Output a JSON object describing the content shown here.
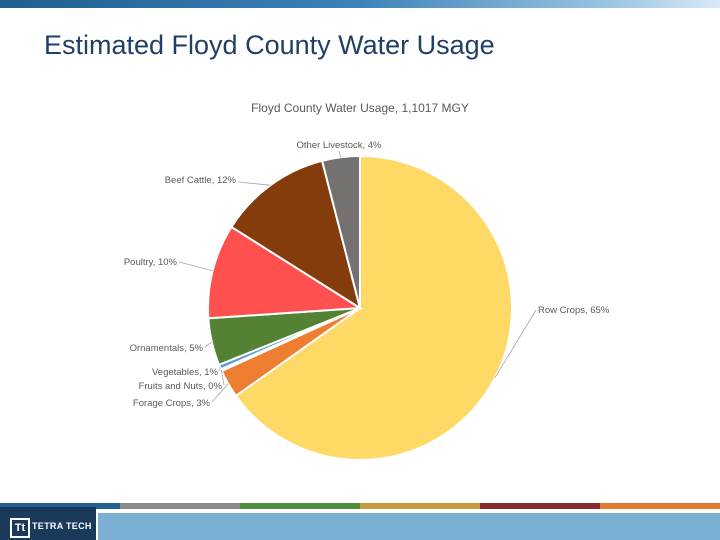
{
  "slide": {
    "title": "Estimated Floyd County Water Usage"
  },
  "chart_data": {
    "type": "pie",
    "title": "Floyd County Water Usage, 1,1017 MGY",
    "slices": [
      {
        "label": "Row Crops, 65%",
        "name": "Row Crops",
        "value": 65,
        "color": "#FFD966"
      },
      {
        "label": "Forage Crops, 3%",
        "name": "Forage Crops",
        "value": 3,
        "color": "#ED7D31"
      },
      {
        "label": "Fruits and Nuts, 0%",
        "name": "Fruits and Nuts",
        "value": 0.2,
        "color": "#A5A5A5"
      },
      {
        "label": "Vegetables, 1%",
        "name": "Vegetables",
        "value": 0.5,
        "color": "#5B9BD5"
      },
      {
        "label": "Ornamentals, 5%",
        "name": "Ornamentals",
        "value": 5,
        "color": "#548235"
      },
      {
        "label": "Poultry, 10%",
        "name": "Poultry",
        "value": 10,
        "color": "#FF5050"
      },
      {
        "label": "Beef Cattle, 12%",
        "name": "Beef Cattle",
        "value": 12,
        "color": "#843C0C"
      },
      {
        "label": "Other Livestock, 4%",
        "name": "Other Livestock",
        "value": 4,
        "color": "#767171"
      }
    ]
  },
  "footer": {
    "logo_text": "TETRA TECH",
    "logo_mark": "Tt",
    "strip_colors": [
      "#1f5f92",
      "#8a8a8a",
      "#4f8f3c",
      "#c99a3d",
      "#8b2b2b",
      "#e07a2e"
    ]
  }
}
